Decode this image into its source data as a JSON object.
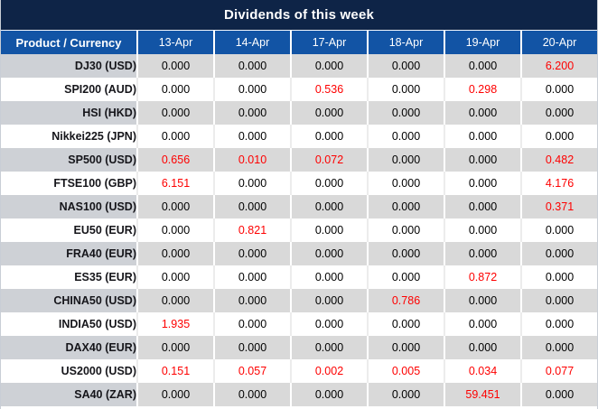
{
  "title": "Dividends of this week",
  "columns": [
    "Product / Currency",
    "13-Apr",
    "14-Apr",
    "17-Apr",
    "18-Apr",
    "19-Apr",
    "20-Apr"
  ],
  "colors": {
    "title_bg": "#0e2447",
    "header_bg": "#1254a5",
    "row_stripe_bg": "#d9d9d9",
    "label_stripe_bg": "#ced1d6",
    "value_highlight": "#fe0000",
    "header_text": "#ffffff"
  },
  "table": {
    "rows": [
      {
        "label": "DJ30 (USD)",
        "values": [
          "0.000",
          "0.000",
          "0.000",
          "0.000",
          "0.000",
          "6.200"
        ],
        "red": [
          0,
          0,
          0,
          0,
          0,
          1
        ]
      },
      {
        "label": "SPI200 (AUD)",
        "values": [
          "0.000",
          "0.000",
          "0.536",
          "0.000",
          "0.298",
          "0.000"
        ],
        "red": [
          0,
          0,
          1,
          0,
          1,
          0
        ]
      },
      {
        "label": "HSI (HKD)",
        "values": [
          "0.000",
          "0.000",
          "0.000",
          "0.000",
          "0.000",
          "0.000"
        ],
        "red": [
          0,
          0,
          0,
          0,
          0,
          0
        ]
      },
      {
        "label": "Nikkei225 (JPN)",
        "values": [
          "0.000",
          "0.000",
          "0.000",
          "0.000",
          "0.000",
          "0.000"
        ],
        "red": [
          0,
          0,
          0,
          0,
          0,
          0
        ]
      },
      {
        "label": "SP500 (USD)",
        "values": [
          "0.656",
          "0.010",
          "0.072",
          "0.000",
          "0.000",
          "0.482"
        ],
        "red": [
          1,
          1,
          1,
          0,
          0,
          1
        ]
      },
      {
        "label": "FTSE100 (GBP)",
        "values": [
          "6.151",
          "0.000",
          "0.000",
          "0.000",
          "0.000",
          "4.176"
        ],
        "red": [
          1,
          0,
          0,
          0,
          0,
          1
        ]
      },
      {
        "label": "NAS100 (USD)",
        "values": [
          "0.000",
          "0.000",
          "0.000",
          "0.000",
          "0.000",
          "0.371"
        ],
        "red": [
          0,
          0,
          0,
          0,
          0,
          1
        ]
      },
      {
        "label": "EU50 (EUR)",
        "values": [
          "0.000",
          "0.821",
          "0.000",
          "0.000",
          "0.000",
          "0.000"
        ],
        "red": [
          0,
          1,
          0,
          0,
          0,
          0
        ]
      },
      {
        "label": "FRA40 (EUR)",
        "values": [
          "0.000",
          "0.000",
          "0.000",
          "0.000",
          "0.000",
          "0.000"
        ],
        "red": [
          0,
          0,
          0,
          0,
          0,
          0
        ]
      },
      {
        "label": "ES35 (EUR)",
        "values": [
          "0.000",
          "0.000",
          "0.000",
          "0.000",
          "0.872",
          "0.000"
        ],
        "red": [
          0,
          0,
          0,
          0,
          1,
          0
        ]
      },
      {
        "label": "CHINA50 (USD)",
        "values": [
          "0.000",
          "0.000",
          "0.000",
          "0.786",
          "0.000",
          "0.000"
        ],
        "red": [
          0,
          0,
          0,
          1,
          0,
          0
        ]
      },
      {
        "label": "INDIA50 (USD)",
        "values": [
          "1.935",
          "0.000",
          "0.000",
          "0.000",
          "0.000",
          "0.000"
        ],
        "red": [
          1,
          0,
          0,
          0,
          0,
          0
        ]
      },
      {
        "label": "DAX40 (EUR)",
        "values": [
          "0.000",
          "0.000",
          "0.000",
          "0.000",
          "0.000",
          "0.000"
        ],
        "red": [
          0,
          0,
          0,
          0,
          0,
          0
        ]
      },
      {
        "label": "US2000 (USD)",
        "values": [
          "0.151",
          "0.057",
          "0.002",
          "0.005",
          "0.034",
          "0.077"
        ],
        "red": [
          1,
          1,
          1,
          1,
          1,
          1
        ]
      },
      {
        "label": "SA40 (ZAR)",
        "values": [
          "0.000",
          "0.000",
          "0.000",
          "0.000",
          "59.451",
          "0.000"
        ],
        "red": [
          0,
          0,
          0,
          0,
          1,
          0
        ]
      }
    ]
  }
}
